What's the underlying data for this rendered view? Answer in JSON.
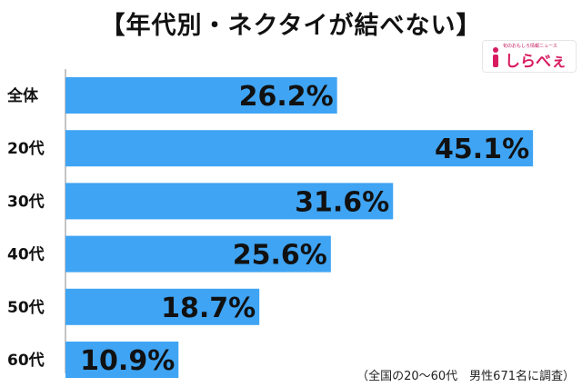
{
  "title": "【年代別・ネクタイが結べない】",
  "logo": {
    "tagline": "旬のおもしろ情報ニュース",
    "text": "しらべぇ",
    "icon": "info-i-icon",
    "color": "#d81b60"
  },
  "footnote": "（全国の20～60代　男性671名に調査）",
  "chart_data": {
    "type": "bar",
    "orientation": "horizontal",
    "categories": [
      "全体",
      "20代",
      "30代",
      "40代",
      "50代",
      "60代"
    ],
    "values": [
      26.2,
      45.1,
      31.6,
      25.6,
      18.7,
      10.9
    ],
    "value_labels": [
      "26.2%",
      "45.1%",
      "31.6%",
      "25.6%",
      "18.7%",
      "10.9%"
    ],
    "title": "【年代別・ネクタイが結べない】",
    "xlabel": "",
    "ylabel": "",
    "xlim": [
      0,
      50
    ],
    "grid": false,
    "legend": "none",
    "bar_color": "#3fa4f3"
  }
}
